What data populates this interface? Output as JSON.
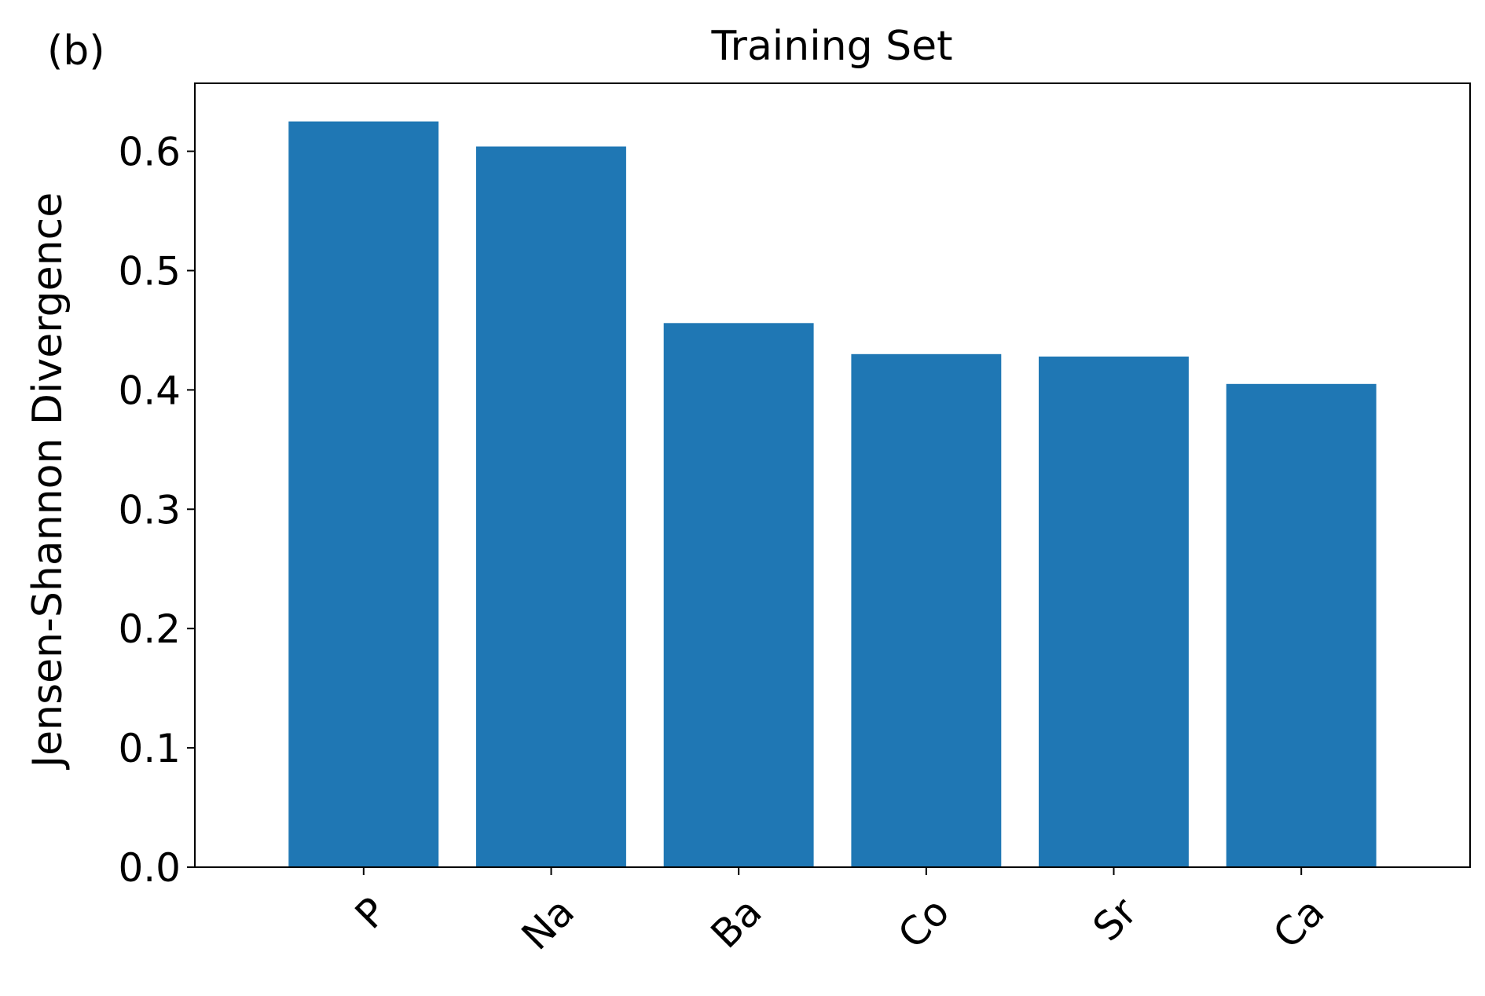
{
  "panel_label": "(b)",
  "chart_data": {
    "type": "bar",
    "title": "Training Set",
    "xlabel": "",
    "ylabel": "Jensen-Shannon Divergence",
    "categories": [
      "P",
      "Na",
      "Ba",
      "Co",
      "Sr",
      "Ca"
    ],
    "values": [
      0.625,
      0.604,
      0.456,
      0.43,
      0.428,
      0.405
    ],
    "ylim": [
      0,
      0.657
    ],
    "yticks": [
      0.0,
      0.1,
      0.2,
      0.3,
      0.4,
      0.5,
      0.6
    ],
    "ytick_labels": [
      "0.0",
      "0.1",
      "0.2",
      "0.3",
      "0.4",
      "0.5",
      "0.6"
    ],
    "bar_color": "#1f77b4",
    "grid": false,
    "xtick_rotation": 45
  }
}
